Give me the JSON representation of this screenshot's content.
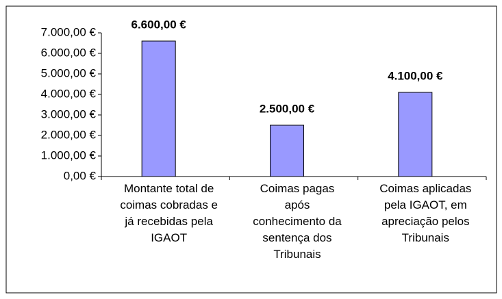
{
  "chart_data": {
    "type": "bar",
    "categories": [
      "Montante total de\ncoimas cobradas e\njá recebidas pela\nIGAOT",
      "Coimas pagas\napós\nconhecimento da\nsentença dos\nTribunais",
      "Coimas aplicadas\npela IGAOT, em\napreciação pelos\nTribunais"
    ],
    "values": [
      6600,
      2500,
      4100
    ],
    "value_labels": [
      "6.600,00 €",
      "2.500,00 €",
      "4.100,00 €"
    ],
    "color": "#9999ff",
    "ylim": [
      0,
      7000
    ],
    "yticks": [
      {
        "value": 0,
        "label": "0,00 €"
      },
      {
        "value": 1000,
        "label": "1.000,00 €"
      },
      {
        "value": 2000,
        "label": "2.000,00 €"
      },
      {
        "value": 3000,
        "label": "3.000,00 €"
      },
      {
        "value": 4000,
        "label": "4.000,00 €"
      },
      {
        "value": 5000,
        "label": "5.000,00 €"
      },
      {
        "value": 6000,
        "label": "6.000,00 €"
      },
      {
        "value": 7000,
        "label": "7.000,00 €"
      }
    ],
    "grid": false
  }
}
